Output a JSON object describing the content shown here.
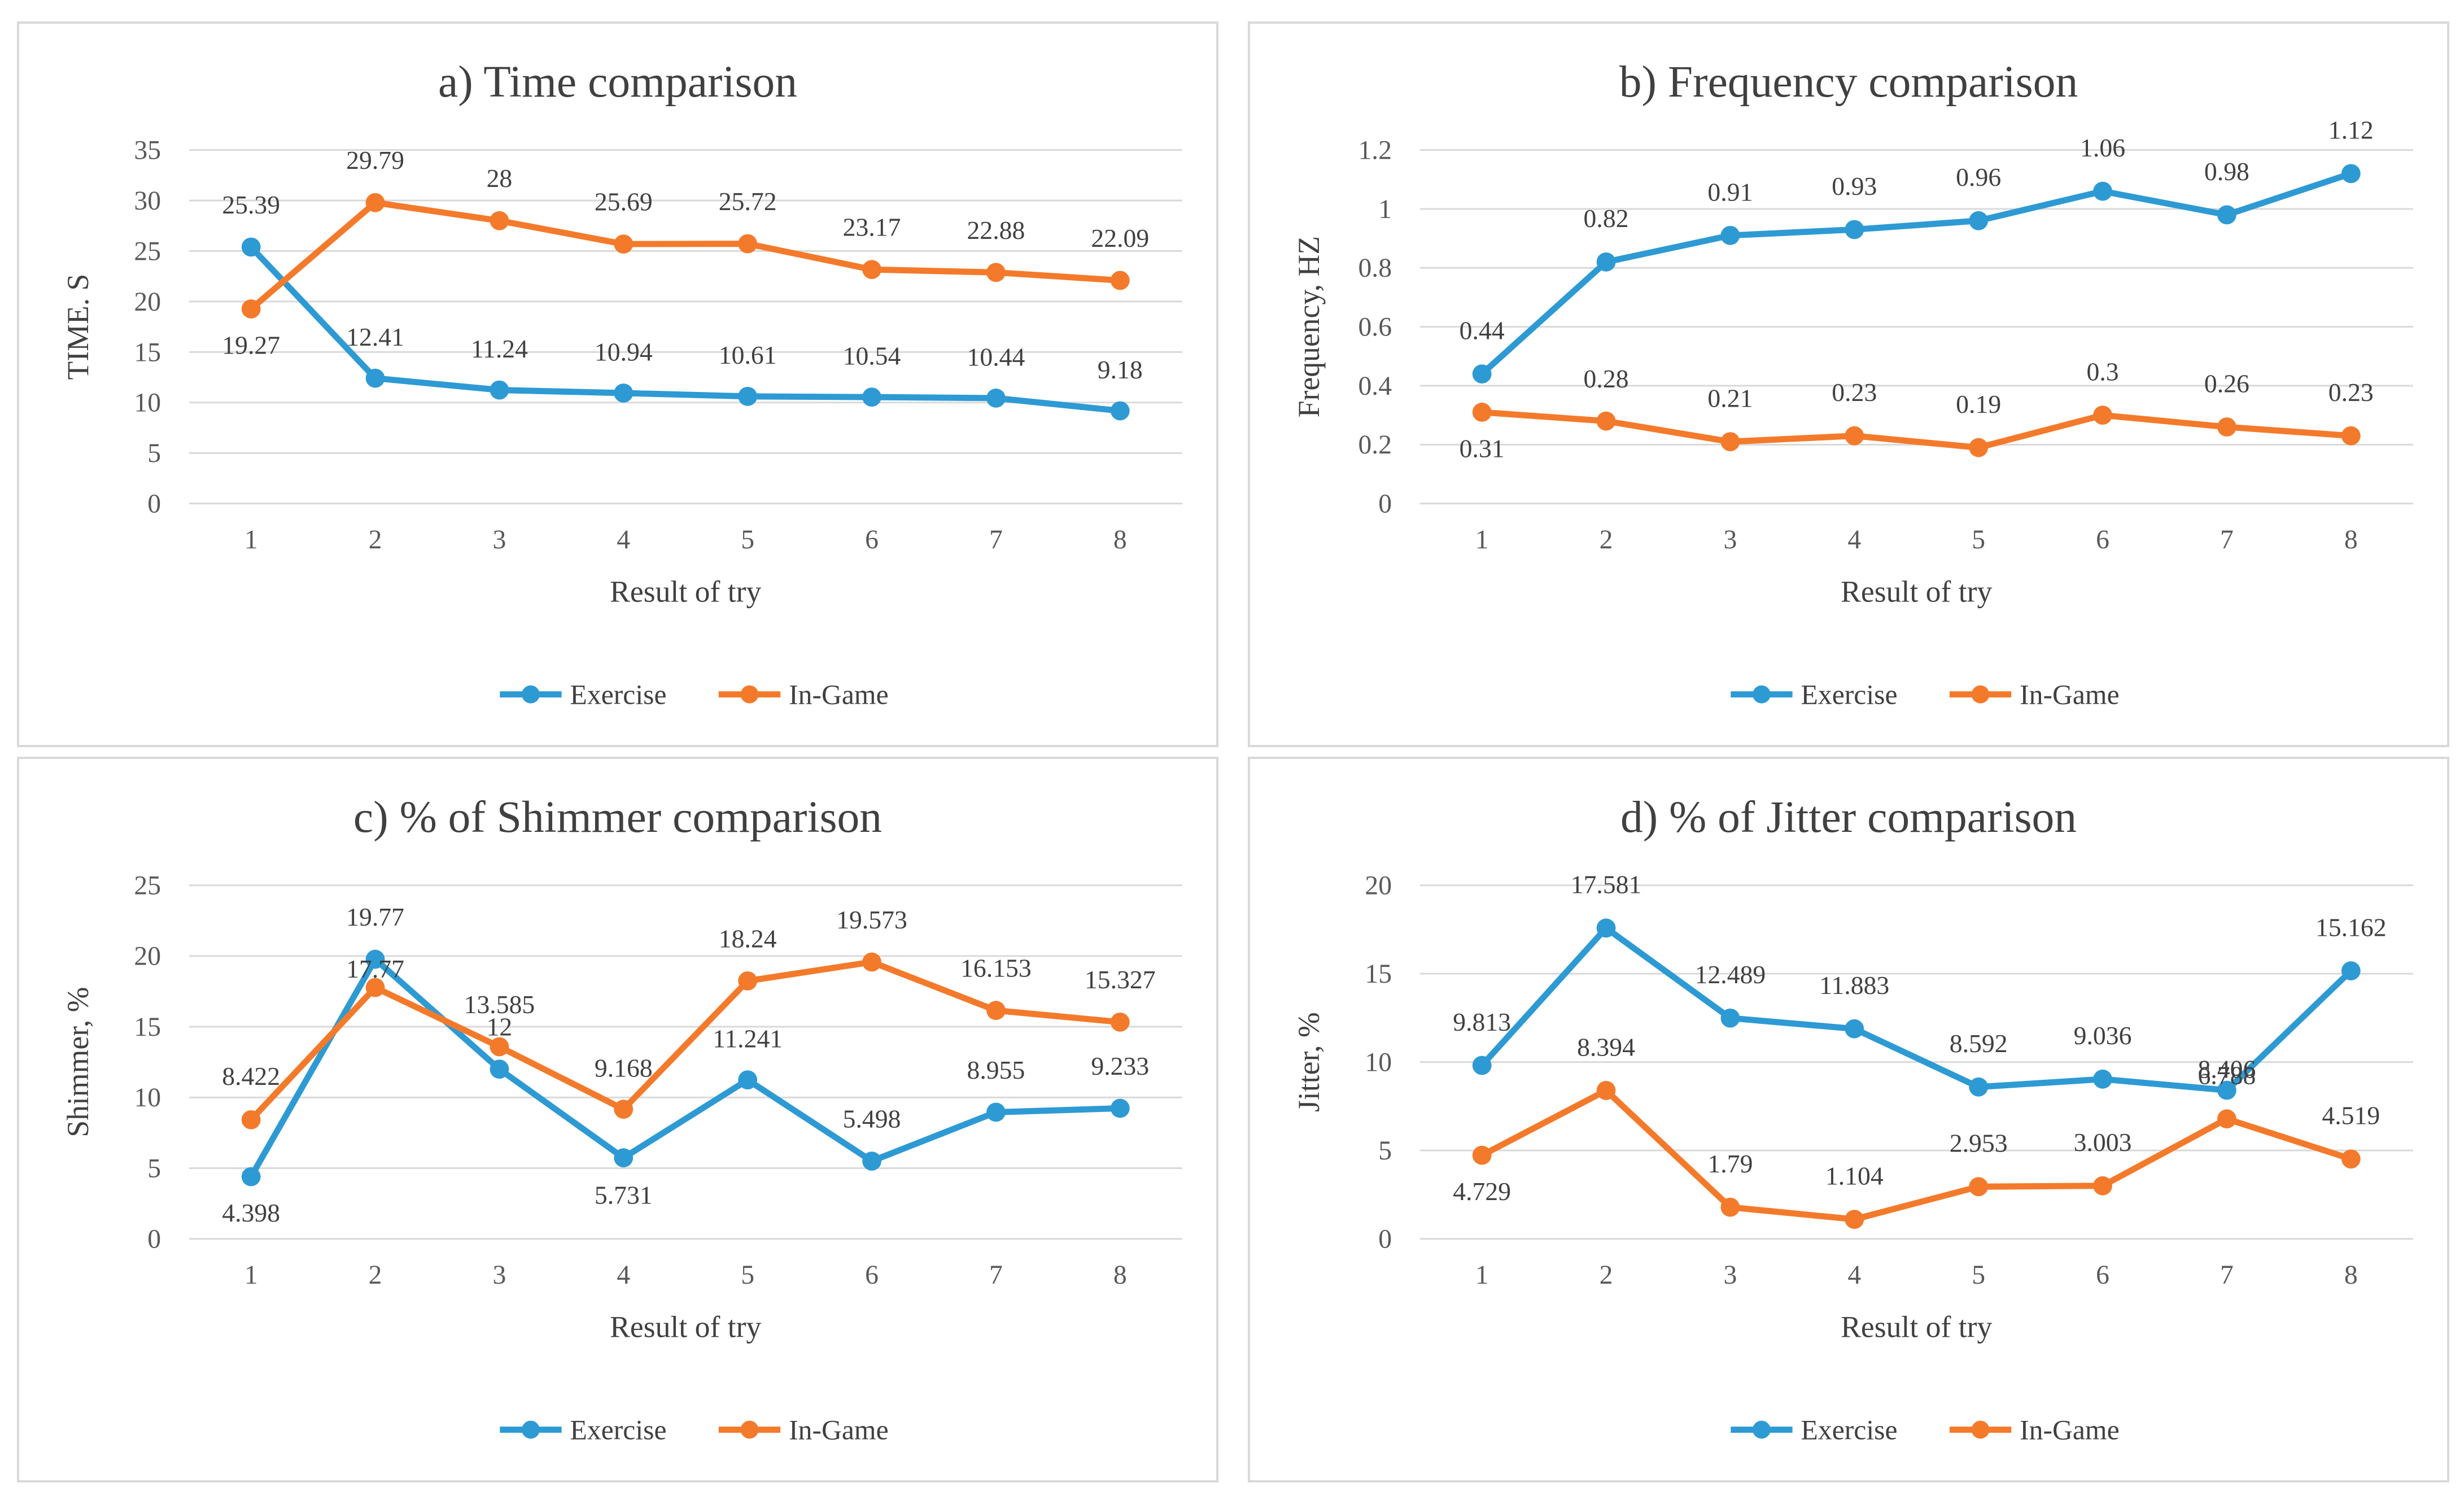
{
  "chart_data": [
    {
      "id": "a",
      "type": "line",
      "title": "a) Time comparison",
      "xlabel": "Result of try",
      "ylabel": "TIME. S",
      "x": [
        1,
        2,
        3,
        4,
        5,
        6,
        7,
        8
      ],
      "ylim": [
        0,
        35
      ],
      "yticks": [
        0,
        5,
        10,
        15,
        20,
        25,
        30,
        35
      ],
      "ytick_labels": [
        "0",
        "5",
        "10",
        "15",
        "20",
        "25",
        "30",
        "35"
      ],
      "series": [
        {
          "name": "Exercise",
          "color": "#2e9ad4",
          "values": [
            25.39,
            12.41,
            11.24,
            10.94,
            10.61,
            10.54,
            10.44,
            9.18
          ],
          "labels": [
            "25.39",
            "12.41",
            "11.24",
            "10.94",
            "10.61",
            "10.54",
            "10.44",
            "9.18"
          ]
        },
        {
          "name": "In-Game",
          "color": "#f47a2b",
          "values": [
            19.27,
            29.79,
            28,
            25.69,
            25.72,
            23.17,
            22.88,
            22.09
          ],
          "labels": [
            "19.27",
            "29.79",
            "28",
            "25.69",
            "25.72",
            "23.17",
            "22.88",
            "22.09"
          ]
        }
      ],
      "legend_position": "bottom"
    },
    {
      "id": "b",
      "type": "line",
      "title": "b) Frequency comparison",
      "xlabel": "Result of try",
      "ylabel": "Frequency, HZ",
      "x": [
        1,
        2,
        3,
        4,
        5,
        6,
        7,
        8
      ],
      "ylim": [
        0,
        1.2
      ],
      "yticks": [
        0,
        0.2,
        0.4,
        0.6,
        0.8,
        1,
        1.2
      ],
      "ytick_labels": [
        "0",
        "0.2",
        "0.4",
        "0.6",
        "0.8",
        "1",
        "1.2"
      ],
      "series": [
        {
          "name": "Exercise",
          "color": "#2e9ad4",
          "values": [
            0.44,
            0.82,
            0.91,
            0.93,
            0.96,
            1.06,
            0.98,
            1.12
          ],
          "labels": [
            "0.44",
            "0.82",
            "0.91",
            "0.93",
            "0.96",
            "1.06",
            "0.98",
            "1.12"
          ]
        },
        {
          "name": "In-Game",
          "color": "#f47a2b",
          "values": [
            0.31,
            0.28,
            0.21,
            0.23,
            0.19,
            0.3,
            0.26,
            0.23
          ],
          "labels": [
            "0.31",
            "0.28",
            "0.21",
            "0.23",
            "0.19",
            "0.3",
            "0.26",
            "0.23"
          ]
        }
      ],
      "legend_position": "bottom"
    },
    {
      "id": "c",
      "type": "line",
      "title": "c) % of Shimmer comparison",
      "xlabel": "Result of try",
      "ylabel": "Shimmer, %",
      "x": [
        1,
        2,
        3,
        4,
        5,
        6,
        7,
        8
      ],
      "ylim": [
        0,
        25
      ],
      "yticks": [
        0,
        5,
        10,
        15,
        20,
        25
      ],
      "ytick_labels": [
        "0",
        "5",
        "10",
        "15",
        "20",
        "25"
      ],
      "series": [
        {
          "name": "Exercise",
          "color": "#2e9ad4",
          "values": [
            4.398,
            19.77,
            12,
            5.731,
            11.241,
            5.498,
            8.955,
            9.233
          ],
          "labels": [
            "4.398",
            "19.77",
            "12",
            "5.731",
            "11.241",
            "5.498",
            "8.955",
            "9.233"
          ]
        },
        {
          "name": "In-Game",
          "color": "#f47a2b",
          "values": [
            8.422,
            17.77,
            13.585,
            9.168,
            18.24,
            19.573,
            16.153,
            15.327
          ],
          "labels": [
            "8.422",
            "17.77",
            "13.585",
            "9.168",
            "18.24",
            "19.573",
            "16.153",
            "15.327"
          ]
        }
      ],
      "legend_position": "bottom"
    },
    {
      "id": "d",
      "type": "line",
      "title": "d) % of Jitter comparison",
      "xlabel": "Result of try",
      "ylabel": "Jitter, %",
      "x": [
        1,
        2,
        3,
        4,
        5,
        6,
        7,
        8
      ],
      "ylim": [
        0,
        20
      ],
      "yticks": [
        0,
        5,
        10,
        15,
        20
      ],
      "ytick_labels": [
        "0",
        "5",
        "10",
        "15",
        "20"
      ],
      "series": [
        {
          "name": "Exercise",
          "color": "#2e9ad4",
          "values": [
            9.813,
            17.581,
            12.489,
            11.883,
            8.592,
            9.036,
            8.406,
            15.162
          ],
          "labels": [
            "9.813",
            "17.581",
            "12.489",
            "11.883",
            "8.592",
            "9.036",
            "8.406",
            "15.162"
          ]
        },
        {
          "name": "In-Game",
          "color": "#f47a2b",
          "values": [
            4.729,
            8.394,
            1.79,
            1.104,
            2.953,
            3.003,
            6.788,
            4.519
          ],
          "labels": [
            "4.729",
            "8.394",
            "1.79",
            "1.104",
            "2.953",
            "3.003",
            "6.788",
            "4.519"
          ]
        }
      ],
      "legend_position": "bottom"
    }
  ]
}
